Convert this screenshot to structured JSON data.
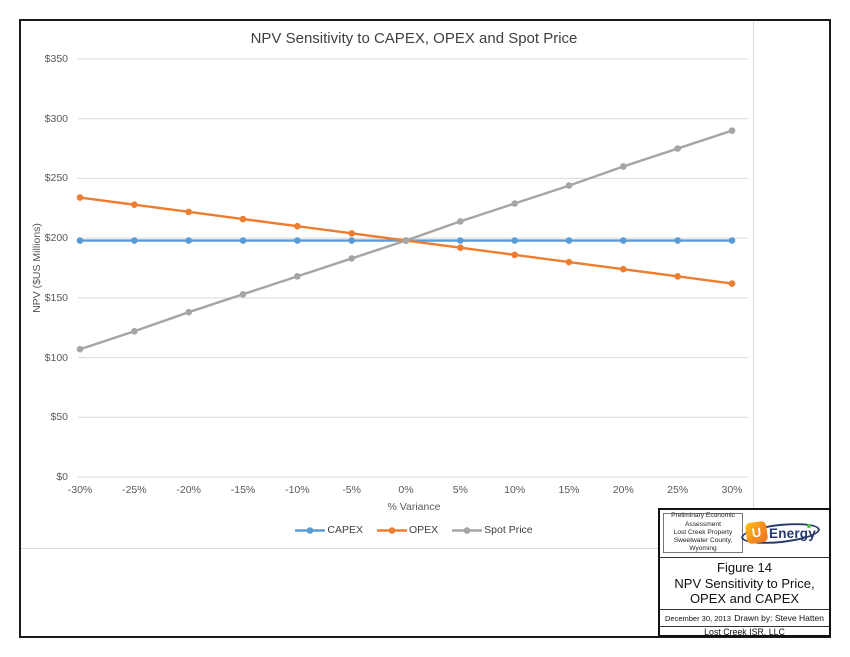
{
  "chart_data": {
    "type": "line",
    "title": "NPV Sensitivity to CAPEX, OPEX and Spot Price",
    "xlabel": "% Variance",
    "ylabel": "NPV ($US Millions)",
    "categories": [
      "-30%",
      "-25%",
      "-20%",
      "-15%",
      "-10%",
      "-5%",
      "0%",
      "5%",
      "10%",
      "15%",
      "20%",
      "25%",
      "30%"
    ],
    "series": [
      {
        "name": "CAPEX",
        "color": "#5B9BD5",
        "values": [
          198,
          198,
          198,
          198,
          198,
          198,
          198,
          198,
          198,
          198,
          198,
          198,
          198
        ]
      },
      {
        "name": "OPEX",
        "color": "#ED7D31",
        "values": [
          234,
          228,
          222,
          216,
          210,
          204,
          198,
          192,
          186,
          180,
          174,
          168,
          162
        ]
      },
      {
        "name": "Spot Price",
        "color": "#A5A5A5",
        "values": [
          107,
          122,
          138,
          153,
          168,
          183,
          198,
          214,
          229,
          244,
          260,
          275,
          290
        ]
      }
    ],
    "ylim": [
      0,
      350
    ],
    "y_tick_step": 50,
    "y_tick_labels": [
      "$0",
      "$50",
      "$100",
      "$150",
      "$200",
      "$250",
      "$300",
      "$350"
    ],
    "grid": true,
    "gridline_color": "#D9D9D9",
    "legend_position": "bottom"
  },
  "title_block": {
    "project": "Preliminary Economic\nAssessment\nLost Creek Property\nSweetwater County,\nWyoming",
    "logo": {
      "alt": "Ur-Energy",
      "badge_letter": "U",
      "text": "Energy"
    },
    "figure_label": "Figure 14",
    "figure_title": "NPV Sensitivity to Price,\nOPEX and CAPEX",
    "date": "December 30, 2013",
    "drawn_by": "Drawn by: Steve Hatten",
    "company": "Lost Creek ISR, LLC"
  }
}
